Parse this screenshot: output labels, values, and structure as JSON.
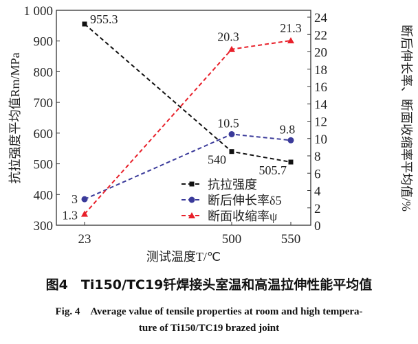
{
  "chart_data": {
    "type": "line",
    "categories": [
      "23",
      "500",
      "550"
    ],
    "xlabel": "测试温度T/℃",
    "ylabel_left": "抗拉强度平均值Rm/MPa",
    "ylabel_right": "断后伸长率、断面收缩率平均值/%",
    "ylim_left": [
      300,
      1000
    ],
    "yticks_left": [
      "300",
      "400",
      "500",
      "600",
      "700",
      "800",
      "900",
      "1 000"
    ],
    "ylim_right": [
      0,
      24
    ],
    "yticks_right": [
      "0",
      "2",
      "4",
      "6",
      "8",
      "10",
      "12",
      "14",
      "16",
      "18",
      "20",
      "22",
      "24"
    ],
    "grid": false,
    "legend": "bottom-right",
    "series": [
      {
        "name": "抗拉强度",
        "axis": "left",
        "values": [
          955.3,
          540,
          505.7
        ],
        "labels": [
          "955.3",
          "540",
          "505.7"
        ],
        "color": "#111111",
        "marker": "square"
      },
      {
        "name": "断后伸长率δ5",
        "axis": "right",
        "values": [
          3,
          10.5,
          9.8
        ],
        "labels": [
          "3",
          "10.5",
          "9.8"
        ],
        "color": "#3a3a9a",
        "marker": "circle"
      },
      {
        "name": "断面收缩率ψ",
        "axis": "right",
        "values": [
          1.3,
          20.3,
          21.3
        ],
        "labels": [
          "1.3",
          "20.3",
          "21.3"
        ],
        "color": "#e8202a",
        "marker": "triangle"
      }
    ]
  },
  "caption": {
    "cn": "图4　Ti150/TC19钎焊接头室温和高温拉伸性能平均值",
    "en1": "Fig. 4　Average value of tensile properties at room and high tempera-",
    "en2": "ture of Ti150/TC19 brazed joint"
  }
}
